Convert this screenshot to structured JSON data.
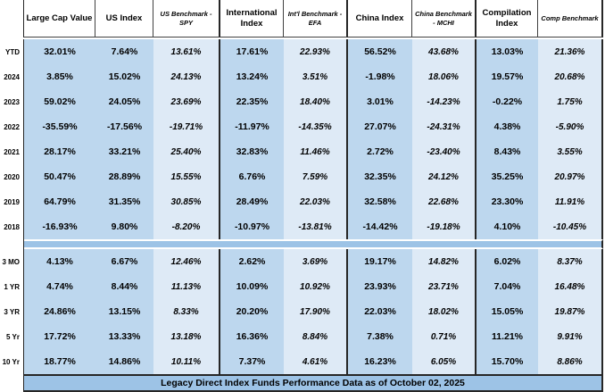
{
  "table": {
    "columns": [
      {
        "label": "Large Cap Value",
        "type": "index",
        "group_end": false
      },
      {
        "label": "US Index",
        "type": "index",
        "group_end": false
      },
      {
        "label": "US Benchmark - SPY",
        "type": "benchmark",
        "group_end": true
      },
      {
        "label": "International Index",
        "type": "index",
        "group_end": false
      },
      {
        "label": "Int'l Benchmark - EFA",
        "type": "benchmark",
        "group_end": true
      },
      {
        "label": "China Index",
        "type": "index",
        "group_end": false
      },
      {
        "label": "China Benchmark - MCHI",
        "type": "benchmark",
        "group_end": true
      },
      {
        "label": "Compilation Index",
        "type": "index",
        "group_end": false
      },
      {
        "label": "Comp Benchmark",
        "type": "benchmark",
        "group_end": true
      }
    ],
    "year_rows": [
      {
        "label": "YTD",
        "values": [
          "32.01%",
          "7.64%",
          "13.61%",
          "17.61%",
          "22.93%",
          "56.52%",
          "43.68%",
          "13.03%",
          "21.36%"
        ]
      },
      {
        "label": "2024",
        "values": [
          "3.85%",
          "15.02%",
          "24.13%",
          "13.24%",
          "3.51%",
          "-1.98%",
          "18.06%",
          "19.57%",
          "20.68%"
        ]
      },
      {
        "label": "2023",
        "values": [
          "59.02%",
          "24.05%",
          "23.69%",
          "22.35%",
          "18.40%",
          "3.01%",
          "-14.23%",
          "-0.22%",
          "1.75%"
        ]
      },
      {
        "label": "2022",
        "values": [
          "-35.59%",
          "-17.56%",
          "-19.71%",
          "-11.97%",
          "-14.35%",
          "27.07%",
          "-24.31%",
          "4.38%",
          "-5.90%"
        ]
      },
      {
        "label": "2021",
        "values": [
          "28.17%",
          "33.21%",
          "25.40%",
          "32.83%",
          "11.46%",
          "2.72%",
          "-23.40%",
          "8.43%",
          "3.55%"
        ]
      },
      {
        "label": "2020",
        "values": [
          "50.47%",
          "28.89%",
          "15.55%",
          "6.76%",
          "7.59%",
          "32.35%",
          "24.12%",
          "35.25%",
          "20.97%"
        ]
      },
      {
        "label": "2019",
        "values": [
          "64.79%",
          "31.35%",
          "30.85%",
          "28.49%",
          "22.03%",
          "32.58%",
          "22.68%",
          "23.30%",
          "11.91%"
        ]
      },
      {
        "label": "2018",
        "values": [
          "-16.93%",
          "9.80%",
          "-8.20%",
          "-10.97%",
          "-13.81%",
          "-14.42%",
          "-19.18%",
          "4.10%",
          "-10.45%"
        ]
      }
    ],
    "period_rows": [
      {
        "label": "3 MO",
        "values": [
          "4.13%",
          "6.67%",
          "12.46%",
          "2.62%",
          "3.69%",
          "19.17%",
          "14.82%",
          "6.02%",
          "8.37%"
        ]
      },
      {
        "label": "1 YR",
        "values": [
          "4.74%",
          "8.44%",
          "11.13%",
          "10.09%",
          "10.92%",
          "23.93%",
          "23.71%",
          "7.04%",
          "16.48%"
        ]
      },
      {
        "label": "3 YR",
        "values": [
          "24.86%",
          "13.15%",
          "8.33%",
          "20.20%",
          "17.90%",
          "22.03%",
          "18.02%",
          "15.05%",
          "19.87%"
        ]
      },
      {
        "label": "5 Yr",
        "values": [
          "17.72%",
          "13.33%",
          "13.18%",
          "16.36%",
          "8.84%",
          "7.38%",
          "0.71%",
          "11.21%",
          "9.91%"
        ]
      },
      {
        "label": "10 Yr",
        "values": [
          "18.77%",
          "14.86%",
          "10.11%",
          "7.37%",
          "4.61%",
          "16.23%",
          "6.05%",
          "15.70%",
          "8.86%"
        ]
      }
    ],
    "footer": "Legacy Direct Index Funds Performance Data as of October 02, 2025"
  },
  "colors": {
    "index_column_bg": "#BDD7EE",
    "benchmark_column_bg": "#DEEAF6",
    "separator_band": "#9DC3E6",
    "footer_bg": "#9DC3E6",
    "border": "#404040"
  }
}
